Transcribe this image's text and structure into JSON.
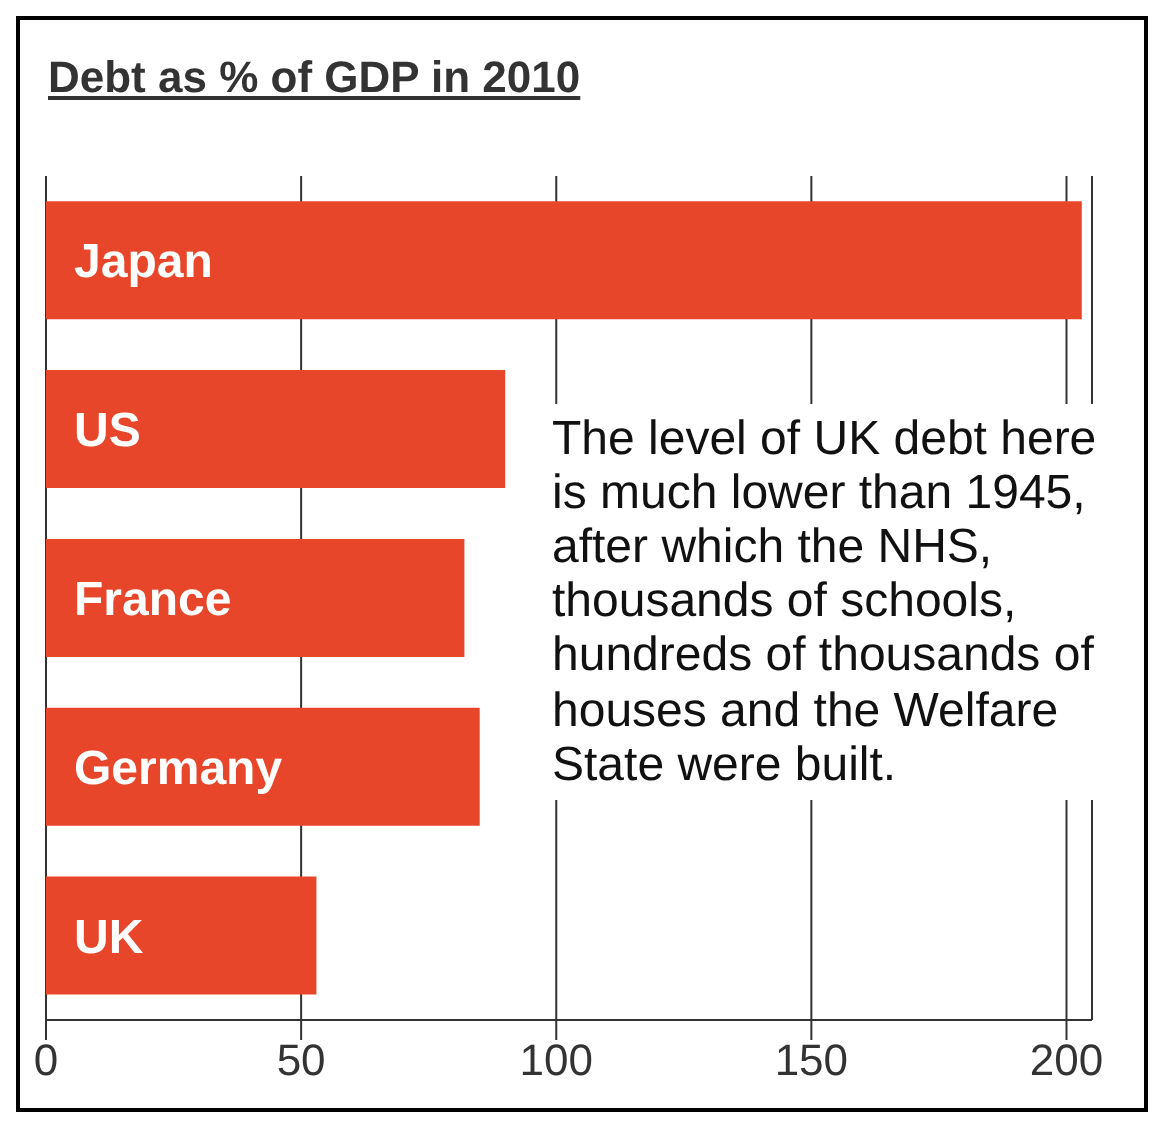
{
  "chart_data": {
    "type": "bar",
    "orientation": "horizontal",
    "title": "Debt as % of GDP in 2010",
    "categories": [
      "Japan",
      "US",
      "France",
      "Germany",
      "UK"
    ],
    "values": [
      203,
      90,
      82,
      85,
      53
    ],
    "color": "#e8462a",
    "xlim": [
      0,
      205
    ],
    "xticks": [
      0,
      50,
      100,
      150,
      200
    ],
    "grid": "x",
    "annotations": [
      "The level of UK debt here is much lower than 1945, after which the NHS, thousands of schools, hundreds of thousands of houses and the Welfare State were built."
    ]
  }
}
